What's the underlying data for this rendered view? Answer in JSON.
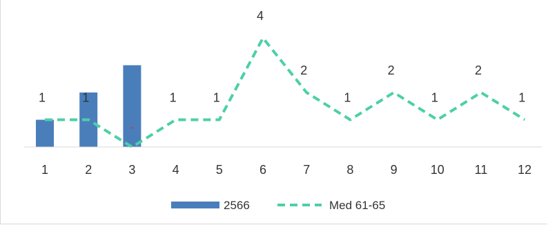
{
  "chart_data": {
    "type": "bar+line",
    "categories": [
      "1",
      "2",
      "3",
      "4",
      "5",
      "6",
      "7",
      "8",
      "9",
      "10",
      "11",
      "12"
    ],
    "series": [
      {
        "name": "2566",
        "type": "bar",
        "values": [
          1,
          2,
          3,
          null,
          null,
          null,
          null,
          null,
          null,
          null,
          null,
          null
        ],
        "color": "#4a7ebb"
      },
      {
        "name": "Med 61-65",
        "type": "line",
        "style": "dashed",
        "values": [
          1,
          1,
          0,
          1,
          1,
          4,
          2,
          1,
          2,
          1,
          2,
          1
        ],
        "color": "#4dcfa8"
      }
    ],
    "data_labels": [
      "1",
      "1",
      "-",
      "1",
      "1",
      "4",
      "2",
      "1",
      "2",
      "1",
      "2",
      "1"
    ],
    "ylim": [
      0,
      4
    ],
    "grid": false,
    "legend_position": "bottom"
  }
}
